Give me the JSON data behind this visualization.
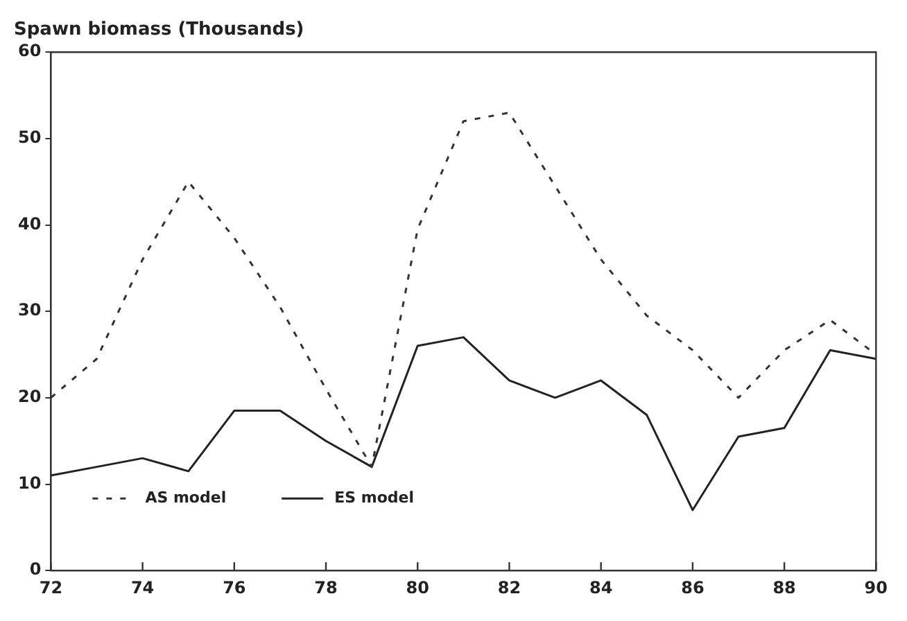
{
  "chart_data": {
    "type": "line",
    "title": "Spawn biomass (Thousands)",
    "x": [
      72,
      73,
      74,
      75,
      76,
      77,
      78,
      79,
      80,
      81,
      82,
      83,
      84,
      85,
      86,
      87,
      88,
      89,
      90
    ],
    "series": [
      {
        "name": "AS model",
        "color": "#333333",
        "line_style": "dashed",
        "values": [
          20,
          24.5,
          36,
          45,
          38.5,
          30.5,
          21,
          12,
          39.5,
          52,
          53,
          44.5,
          36,
          29.5,
          25.5,
          20,
          25.5,
          29,
          25
        ]
      },
      {
        "name": "ES model",
        "color": "#222222",
        "line_style": "solid",
        "values": [
          11,
          12,
          13,
          11.5,
          18.5,
          18.5,
          15,
          12,
          26,
          27,
          22,
          20,
          22,
          18,
          7,
          15.5,
          16.5,
          25.5,
          24.5
        ]
      }
    ],
    "xlim": [
      72,
      90
    ],
    "xticks": [
      72,
      74,
      76,
      78,
      80,
      82,
      84,
      86,
      88,
      90
    ],
    "ylim": [
      0,
      60
    ],
    "yticks": [
      0,
      10,
      20,
      30,
      40,
      50,
      60
    ],
    "grid": false,
    "legend": "bottom left",
    "marker": "none"
  }
}
